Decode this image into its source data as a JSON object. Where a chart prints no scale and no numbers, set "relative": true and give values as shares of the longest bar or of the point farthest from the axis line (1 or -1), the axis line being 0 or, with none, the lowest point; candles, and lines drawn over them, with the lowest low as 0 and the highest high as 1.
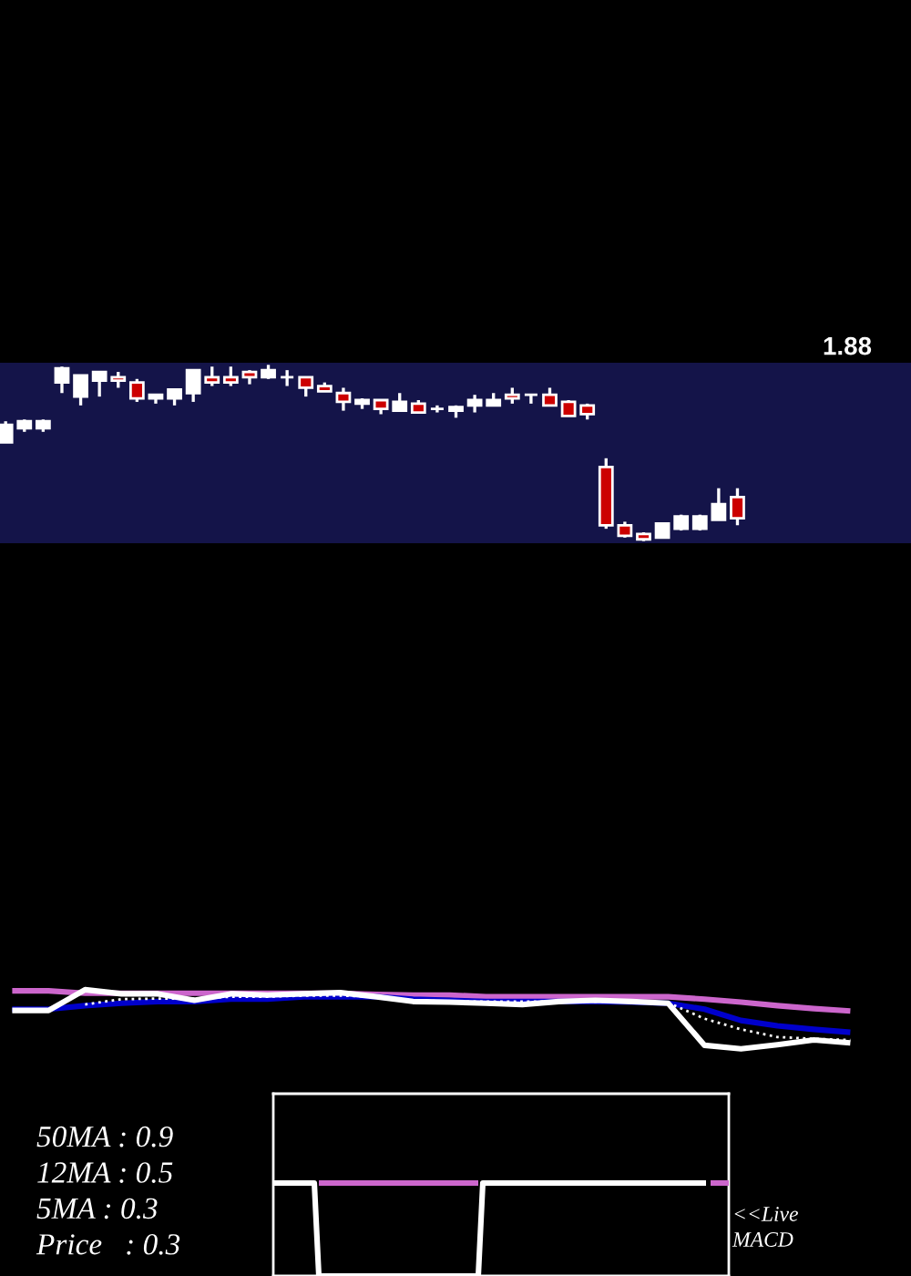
{
  "chart_data": [
    {
      "type": "candlestick",
      "relative": true,
      "categories": [
        null,
        null,
        null,
        null,
        null,
        null,
        null,
        null,
        null,
        null,
        null,
        null,
        null,
        null,
        null,
        null,
        null,
        null,
        null,
        null,
        null,
        null,
        null,
        null,
        null,
        null,
        null,
        null,
        null,
        null,
        null,
        null,
        null,
        null,
        null,
        null,
        null,
        null,
        null,
        null
      ],
      "ohlc": [
        [
          0.56,
          0.68,
          0.56,
          0.66
        ],
        [
          0.64,
          0.69,
          0.62,
          0.68
        ],
        [
          0.64,
          0.69,
          0.62,
          0.68
        ],
        [
          0.9,
          0.99,
          0.84,
          0.98
        ],
        [
          0.82,
          0.94,
          0.77,
          0.94
        ],
        [
          0.91,
          0.96,
          0.82,
          0.96
        ],
        [
          0.93,
          0.96,
          0.87,
          0.91
        ],
        [
          0.9,
          0.92,
          0.79,
          0.81
        ],
        [
          0.81,
          0.83,
          0.78,
          0.83
        ],
        [
          0.81,
          0.86,
          0.77,
          0.86
        ],
        [
          0.84,
          0.97,
          0.79,
          0.97
        ],
        [
          0.93,
          0.99,
          0.88,
          0.9
        ],
        [
          0.93,
          0.99,
          0.88,
          0.9
        ],
        [
          0.96,
          0.97,
          0.89,
          0.93
        ],
        [
          0.93,
          1.0,
          0.92,
          0.97
        ],
        [
          0.93,
          0.97,
          0.88,
          0.93
        ],
        [
          0.93,
          0.93,
          0.82,
          0.87
        ],
        [
          0.88,
          0.9,
          0.85,
          0.85
        ],
        [
          0.84,
          0.87,
          0.74,
          0.79
        ],
        [
          0.78,
          0.81,
          0.75,
          0.8
        ],
        [
          0.8,
          0.8,
          0.72,
          0.75
        ],
        [
          0.74,
          0.84,
          0.74,
          0.79
        ],
        [
          0.78,
          0.8,
          0.73,
          0.73
        ],
        [
          0.75,
          0.77,
          0.73,
          0.75
        ],
        [
          0.74,
          0.77,
          0.7,
          0.76
        ],
        [
          0.77,
          0.83,
          0.73,
          0.8
        ],
        [
          0.77,
          0.84,
          0.77,
          0.8
        ],
        [
          0.83,
          0.87,
          0.78,
          0.81
        ],
        [
          0.83,
          0.83,
          0.78,
          0.83
        ],
        [
          0.83,
          0.87,
          0.77,
          0.77
        ],
        [
          0.79,
          0.8,
          0.71,
          0.71
        ],
        [
          0.77,
          0.78,
          0.69,
          0.72
        ],
        [
          0.42,
          0.47,
          0.07,
          0.09
        ],
        [
          0.09,
          0.11,
          0.02,
          0.03
        ],
        [
          0.04,
          0.05,
          0.0,
          0.01
        ],
        [
          0.02,
          0.1,
          0.02,
          0.1
        ],
        [
          0.07,
          0.15,
          0.06,
          0.14
        ],
        [
          0.07,
          0.15,
          0.06,
          0.14
        ],
        [
          0.12,
          0.3,
          0.12,
          0.21
        ],
        [
          0.25,
          0.3,
          0.09,
          0.13
        ]
      ],
      "colors": [
        "#ffffff",
        "#ffffff",
        "#ffffff",
        "#ffffff",
        "#ffffff",
        "#ffffff",
        "#cc0000",
        "#cc0000",
        "#ffffff",
        "#ffffff",
        "#ffffff",
        "#cc0000",
        "#cc0000",
        "#cc0000",
        "#ffffff",
        "#ffffff",
        "#cc0000",
        "#cc0000",
        "#cc0000",
        "#ffffff",
        "#cc0000",
        "#ffffff",
        "#cc0000",
        "#ffffff",
        "#ffffff",
        "#ffffff",
        "#ffffff",
        "#cc0000",
        "#ffffff",
        "#cc0000",
        "#cc0000",
        "#cc0000",
        "#cc0000",
        "#cc0000",
        "#cc0000",
        "#ffffff",
        "#ffffff",
        "#ffffff",
        "#ffffff",
        "#cc0000"
      ],
      "annotations": [
        "1.88"
      ]
    },
    {
      "type": "line",
      "relative": true,
      "line_style": "solid",
      "categories": [
        null,
        null,
        null,
        null,
        null,
        null,
        null,
        null,
        null,
        null,
        null,
        null,
        null,
        null,
        null,
        null,
        null,
        null,
        null,
        null,
        null,
        null,
        null,
        null
      ],
      "series": [
        {
          "color": "#cc66cc",
          "values": [
            0.98,
            0.98,
            0.94,
            0.94,
            0.94,
            0.94,
            0.94,
            0.94,
            0.94,
            0.94,
            0.92,
            0.91,
            0.91,
            0.88,
            0.88,
            0.88,
            0.88,
            0.88,
            0.88,
            0.84,
            0.79,
            0.73,
            0.68,
            0.64
          ]
        },
        {
          "color": "#0000cc",
          "values": [
            0.67,
            0.67,
            0.73,
            0.77,
            0.8,
            0.8,
            0.84,
            0.84,
            0.88,
            0.88,
            0.88,
            0.84,
            0.82,
            0.8,
            0.8,
            0.8,
            0.8,
            0.79,
            0.77,
            0.67,
            0.48,
            0.39,
            0.33,
            0.28
          ]
        },
        {
          "color": "#ffffff",
          "values": [
            0.65,
            0.65,
            1.0,
            0.93,
            0.93,
            0.82,
            0.93,
            0.91,
            0.93,
            0.95,
            0.88,
            0.8,
            0.79,
            0.77,
            0.75,
            0.8,
            0.82,
            0.8,
            0.77,
            0.06,
            0.0,
            0.07,
            0.15,
            0.1
          ]
        },
        {
          "color": "#ffffff",
          "line_style": "dotted",
          "values": [
            null,
            null,
            0.75,
            0.84,
            0.85,
            0.85,
            0.88,
            0.88,
            0.9,
            0.9,
            0.88,
            0.82,
            0.8,
            0.8,
            0.8,
            0.8,
            0.8,
            0.8,
            0.78,
            0.51,
            0.33,
            0.2,
            0.17,
            0.15
          ]
        }
      ],
      "annotations": [
        "50MA : 0.9",
        "12MA : 0.5",
        "5MA : 0.3",
        "Price   : 0.3"
      ]
    },
    {
      "type": "line",
      "relative": true,
      "line_style": "solid",
      "categories": [
        null,
        null,
        null,
        null,
        null,
        null,
        null,
        null,
        null,
        null,
        null,
        null,
        null,
        null,
        null,
        null,
        null,
        null,
        null,
        null,
        null,
        null,
        null,
        null,
        null,
        null,
        null,
        null,
        null,
        null,
        null,
        null,
        null,
        null,
        null,
        null,
        null,
        null,
        null,
        null,
        null,
        null,
        null,
        null,
        null,
        null,
        null,
        null,
        null,
        null,
        null,
        null,
        null,
        null,
        null,
        null,
        null,
        null,
        null,
        null,
        null,
        null,
        null,
        null,
        null,
        null,
        null,
        null,
        null,
        null,
        null,
        null,
        null,
        null,
        null,
        null,
        null,
        null,
        null,
        null,
        null,
        null,
        null,
        null,
        null,
        null,
        null,
        null,
        null,
        null,
        null,
        null,
        null,
        null,
        null,
        null,
        null,
        null,
        null,
        null,
        null
      ],
      "series": [
        {
          "color": "#ffffff",
          "values": [
            1,
            1,
            1,
            1,
            1,
            1,
            1,
            1,
            1,
            1,
            0,
            0,
            0,
            0,
            0,
            0,
            0,
            0,
            0,
            0,
            0,
            0,
            0,
            0,
            0,
            0,
            0,
            0,
            0,
            0,
            0,
            0,
            0,
            0,
            0,
            0,
            0,
            0,
            0,
            0,
            0,
            0,
            0,
            0,
            0,
            0,
            1,
            1,
            1,
            1,
            1,
            1,
            1,
            1,
            1,
            1,
            1,
            1,
            1,
            1,
            1,
            1,
            1,
            1,
            1,
            1,
            1,
            1,
            1,
            1,
            1,
            1,
            1,
            1,
            1,
            1,
            1,
            1,
            1,
            1,
            1,
            1,
            1,
            1,
            1,
            1,
            1,
            1,
            1,
            1,
            1,
            1,
            1,
            1,
            1,
            1,
            null,
            null,
            null,
            null,
            null
          ]
        },
        {
          "color": "#cc66cc",
          "values": [
            null,
            null,
            null,
            null,
            null,
            null,
            null,
            null,
            null,
            null,
            1,
            1,
            1,
            1,
            1,
            1,
            1,
            1,
            1,
            1,
            1,
            1,
            1,
            1,
            1,
            1,
            1,
            1,
            1,
            1,
            1,
            1,
            1,
            1,
            1,
            1,
            1,
            1,
            1,
            1,
            1,
            1,
            1,
            1,
            1,
            1,
            null,
            null,
            null,
            null,
            null,
            null,
            null,
            null,
            null,
            null,
            null,
            null,
            null,
            null,
            null,
            null,
            null,
            null,
            null,
            null,
            null,
            null,
            null,
            null,
            null,
            null,
            null,
            null,
            null,
            null,
            null,
            null,
            null,
            null,
            null,
            null,
            null,
            null,
            null,
            null,
            null,
            null,
            null,
            null,
            null,
            null,
            null,
            null,
            null,
            null,
            null,
            null,
            null,
            null,
            null
          ]
        },
        {
          "color": "#cc66cc",
          "values": [
            null,
            null,
            null,
            null,
            null,
            null,
            null,
            null,
            null,
            null,
            null,
            null,
            null,
            null,
            null,
            null,
            null,
            null,
            null,
            null,
            null,
            null,
            null,
            null,
            null,
            null,
            null,
            null,
            null,
            null,
            null,
            null,
            null,
            null,
            null,
            null,
            null,
            null,
            null,
            null,
            null,
            null,
            null,
            null,
            null,
            null,
            null,
            null,
            null,
            null,
            null,
            null,
            null,
            null,
            null,
            null,
            null,
            null,
            null,
            null,
            null,
            null,
            null,
            null,
            null,
            null,
            null,
            null,
            null,
            null,
            null,
            null,
            null,
            null,
            null,
            null,
            null,
            null,
            null,
            null,
            null,
            null,
            null,
            null,
            null,
            null,
            null,
            null,
            null,
            null,
            null,
            null,
            null,
            null,
            null,
            null,
            1,
            1,
            1,
            1,
            1
          ]
        }
      ],
      "annotations": [
        "<<Live",
        "MACD"
      ]
    }
  ]
}
